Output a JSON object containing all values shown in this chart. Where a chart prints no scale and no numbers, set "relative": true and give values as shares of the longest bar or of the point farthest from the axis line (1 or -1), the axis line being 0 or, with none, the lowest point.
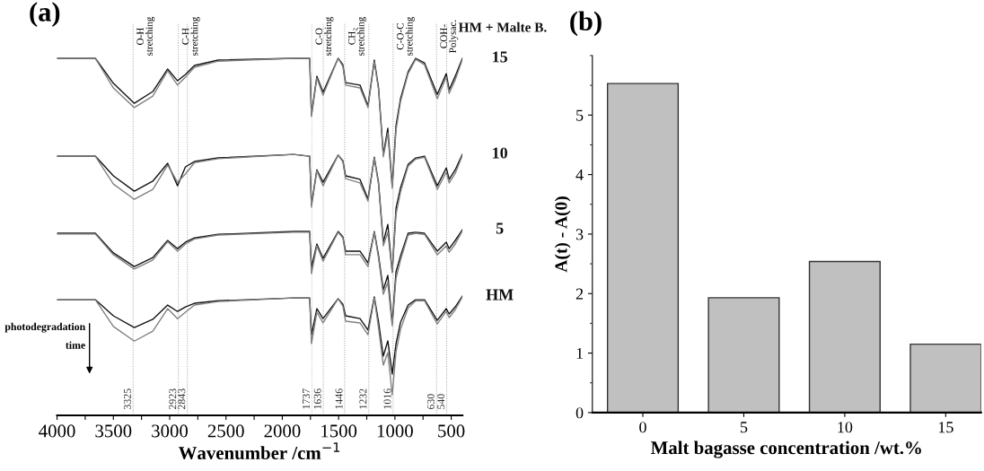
{
  "chart_data": [
    {
      "type": "line",
      "title": "(a)",
      "subtitle": "HM + Malte B.",
      "xlabel": "Wavenumber /cm$^{−1}$",
      "relative": true,
      "legend": false,
      "grid": false,
      "tick_labels": "x",
      "line_style": "solid",
      "marker": "none",
      "x": [
        4000,
        3660,
        3500,
        3314,
        3150,
        3018,
        2930,
        2860,
        2780,
        2570,
        1900,
        1757,
        1741,
        1693,
        1638,
        1504,
        1462,
        1438,
        1310,
        1239,
        1183,
        1145,
        1103,
        1063,
        1024,
        990,
        950,
        883,
        816,
        737,
        624,
        544,
        518,
        464,
        401
      ],
      "xlim": [
        4000,
        400
      ],
      "xticks": [
        4000,
        {
          "value": 3750,
          "label": null
        },
        3500,
        {
          "value": 3250,
          "label": null
        },
        3000,
        {
          "value": 2750,
          "label": null
        },
        2500,
        {
          "value": 2250,
          "label": null
        },
        2000,
        {
          "value": 1750,
          "label": null
        },
        1500,
        {
          "value": 1250,
          "label": null
        },
        1000,
        {
          "value": 750,
          "label": null
        },
        500
      ],
      "series": [
        {
          "name": "15",
          "color": "#111111",
          "values": [
            1.0,
            1.0,
            0.93,
            0.874,
            0.907,
            0.97,
            0.937,
            0.955,
            0.98,
            0.995,
            1.0,
            1.0,
            0.842,
            0.95,
            0.905,
            1.0,
            0.982,
            0.932,
            0.925,
            0.867,
            0.995,
            0.917,
            0.731,
            0.804,
            0.643,
            0.812,
            0.887,
            0.962,
            1.0,
            0.987,
            0.899,
            0.957,
            0.912,
            0.95,
            1.0
          ]
        },
        {
          "color": "#808080",
          "values": [
            1.0,
            1.0,
            0.917,
            0.862,
            0.894,
            0.965,
            0.925,
            0.947,
            0.975,
            0.992,
            1.0,
            1.0,
            0.837,
            0.945,
            0.897,
            1.0,
            0.977,
            0.925,
            0.917,
            0.862,
            0.99,
            0.912,
            0.724,
            0.791,
            0.636,
            0.799,
            0.879,
            0.957,
            0.997,
            0.982,
            0.887,
            0.947,
            0.902,
            0.94,
            0.997
          ]
        },
        {
          "name": "10",
          "color": "#111111",
          "values": [
            0.726,
            0.726,
            0.671,
            0.628,
            0.656,
            0.706,
            0.643,
            0.696,
            0.711,
            0.721,
            0.731,
            0.726,
            0.59,
            0.688,
            0.653,
            0.729,
            0.713,
            0.671,
            0.661,
            0.606,
            0.723,
            0.651,
            0.485,
            0.535,
            0.402,
            0.58,
            0.638,
            0.703,
            0.721,
            0.726,
            0.643,
            0.693,
            0.661,
            0.688,
            0.731
          ]
        },
        {
          "color": "#808080",
          "values": [
            0.726,
            0.726,
            0.648,
            0.605,
            0.633,
            0.701,
            0.653,
            0.676,
            0.708,
            0.719,
            0.731,
            0.726,
            0.583,
            0.685,
            0.643,
            0.729,
            0.71,
            0.663,
            0.651,
            0.6,
            0.72,
            0.646,
            0.475,
            0.513,
            0.4,
            0.563,
            0.626,
            0.698,
            0.718,
            0.723,
            0.633,
            0.681,
            0.651,
            0.678,
            0.728
          ]
        },
        {
          "name": "5",
          "color": "#111111",
          "values": [
            0.51,
            0.51,
            0.455,
            0.417,
            0.442,
            0.49,
            0.467,
            0.485,
            0.497,
            0.507,
            0.515,
            0.515,
            0.415,
            0.48,
            0.44,
            0.515,
            0.5,
            0.46,
            0.46,
            0.427,
            0.515,
            0.447,
            0.352,
            0.392,
            0.259,
            0.402,
            0.447,
            0.51,
            0.513,
            0.51,
            0.46,
            0.485,
            0.467,
            0.49,
            0.52
          ]
        },
        {
          "color": "#808080",
          "values": [
            0.508,
            0.508,
            0.45,
            0.41,
            0.435,
            0.487,
            0.46,
            0.48,
            0.494,
            0.505,
            0.513,
            0.513,
            0.397,
            0.475,
            0.432,
            0.513,
            0.497,
            0.45,
            0.45,
            0.417,
            0.513,
            0.44,
            0.339,
            0.372,
            0.251,
            0.384,
            0.435,
            0.505,
            0.51,
            0.507,
            0.45,
            0.475,
            0.457,
            0.48,
            0.517
          ]
        },
        {
          "name": "HM",
          "color": "#111111",
          "values": [
            0.324,
            0.324,
            0.279,
            0.246,
            0.269,
            0.309,
            0.291,
            0.304,
            0.314,
            0.321,
            0.329,
            0.329,
            0.226,
            0.299,
            0.271,
            0.327,
            0.311,
            0.279,
            0.271,
            0.239,
            0.332,
            0.261,
            0.166,
            0.209,
            0.116,
            0.201,
            0.261,
            0.309,
            0.324,
            0.324,
            0.266,
            0.299,
            0.284,
            0.304,
            0.334
          ]
        },
        {
          "color": "#808080",
          "values": [
            0.324,
            0.324,
            0.249,
            0.208,
            0.236,
            0.299,
            0.271,
            0.289,
            0.309,
            0.319,
            0.329,
            0.329,
            0.201,
            0.289,
            0.259,
            0.327,
            0.306,
            0.264,
            0.259,
            0.226,
            0.329,
            0.244,
            0.141,
            0.176,
            0.058,
            0.178,
            0.241,
            0.301,
            0.321,
            0.321,
            0.256,
            0.291,
            0.274,
            0.296,
            0.332
          ]
        }
      ],
      "ref_lines": [
        {
          "axis": "x",
          "value": 3325,
          "label": "3325",
          "line_style": "dotted",
          "color": "#999999"
        },
        {
          "axis": "x",
          "value": 2923,
          "label": "2923",
          "line_style": "dotted",
          "color": "#999999"
        },
        {
          "axis": "x",
          "value": 2843,
          "label": "2843",
          "line_style": "dotted",
          "color": "#999999"
        },
        {
          "axis": "x",
          "value": 1737,
          "label": "1737",
          "line_style": "dotted",
          "color": "#bbbbbb"
        },
        {
          "axis": "x",
          "value": 1636,
          "label": "1636",
          "line_style": "dotted",
          "color": "#999999"
        },
        {
          "axis": "x",
          "value": 1446,
          "label": "1446",
          "line_style": "dotted",
          "color": "#999999"
        },
        {
          "axis": "x",
          "value": 1232,
          "label": "1232",
          "line_style": "dotted",
          "color": "#999999"
        },
        {
          "axis": "x",
          "value": 1016,
          "label": "1016",
          "line_style": "dotted",
          "color": "#999999"
        },
        {
          "axis": "x",
          "value": 630,
          "label": "630",
          "line_style": "dotted",
          "color": "#999999"
        },
        {
          "axis": "x",
          "value": 540,
          "label": "540",
          "line_style": "dotted",
          "color": "#999999"
        }
      ],
      "annotations": [
        {
          "text": "O-H\nstretching",
          "x": 3325
        },
        {
          "text": "C-H\nstretching",
          "x": 2923
        },
        {
          "text": "C-O\nstretching",
          "x": 1737
        },
        {
          "text": "CH₂\nstretching",
          "x": 1446
        },
        {
          "text": "C-O-C\nstretching",
          "x": 1016
        },
        {
          "text": "COH-\nPolysac.",
          "x": 630
        },
        "photodegradation\ntime"
      ]
    },
    {
      "type": "bar",
      "title": "(b)",
      "xlabel": "Malt bagasse concentration /wt.%",
      "ylabel": "A(t) - A(0)",
      "legend": false,
      "grid": false,
      "categories": [
        "0",
        "5",
        "10",
        "15"
      ],
      "values": [
        5.53,
        1.93,
        2.54,
        1.15
      ],
      "color": "#c0c0c0",
      "ylim": [
        0,
        6
      ],
      "yticks": [
        0,
        1,
        2,
        3,
        4,
        5
      ]
    }
  ]
}
